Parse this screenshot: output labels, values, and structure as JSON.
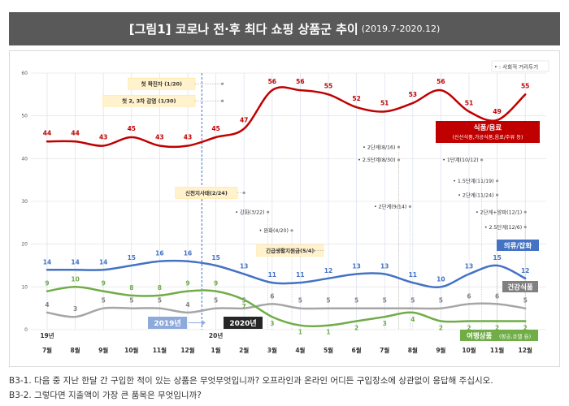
{
  "header": {
    "title": "[그림1] 코로나 전·후 최다 쇼핑 상품군 추이",
    "period": "(2019.7-2020.12)"
  },
  "chart_data": {
    "type": "line",
    "categories": [
      "7월",
      "8월",
      "9월",
      "10월",
      "11월",
      "12월",
      "1월",
      "2월",
      "3월",
      "4월",
      "5월",
      "6월",
      "7월",
      "8월",
      "9월",
      "10월",
      "11월",
      "12월"
    ],
    "year_markers": [
      {
        "label": "19년",
        "index": 0
      },
      {
        "label": "20년",
        "index": 6
      }
    ],
    "year_boxes": [
      {
        "label": "2019년",
        "color": "#8eaadb"
      },
      {
        "label": "2020년",
        "color": "#262626"
      }
    ],
    "ylim": [
      0,
      60
    ],
    "yticks": [
      0,
      10,
      20,
      30,
      40,
      50,
      60
    ],
    "series": [
      {
        "name": "식품/음료",
        "sublabel": "(신선식품,가공식품,음료/주류 등)",
        "color": "#c00000",
        "values": [
          44,
          44,
          43,
          45,
          43,
          43,
          45,
          47,
          56,
          56,
          55,
          52,
          51,
          53,
          56,
          51,
          49,
          55
        ]
      },
      {
        "name": "의류/잡화",
        "color": "#4472c4",
        "values": [
          14,
          14,
          14,
          15,
          16,
          16,
          15,
          13,
          11,
          11,
          12,
          13,
          13,
          11,
          10,
          13,
          15,
          12
        ]
      },
      {
        "name": "건강식품",
        "color": "#a6a6a6",
        "values": [
          4,
          3,
          5,
          5,
          5,
          4,
          5,
          5,
          6,
          5,
          5,
          5,
          5,
          5,
          5,
          6,
          6,
          5
        ]
      },
      {
        "name": "여행상품",
        "sublabel": "(항공,호텔 등)",
        "color": "#70ad47",
        "values": [
          9,
          10,
          9,
          8,
          8,
          9,
          9,
          7,
          3,
          1,
          1,
          2,
          3,
          4,
          2,
          2,
          2,
          2
        ]
      }
    ],
    "legend_note": "• : 사회적 거리두기",
    "events_box": [
      {
        "label": "첫 확진자 (1/20)",
        "y": 57.5
      },
      {
        "label": "첫 2, 3차 감염 (1/30)",
        "y": 53.5
      },
      {
        "label": "신천지사태(2/24)",
        "y": 32
      },
      {
        "label": "긴급생활지원금(5/4)",
        "y": 18.5
      }
    ],
    "events_text": [
      {
        "label": "강화(3/22)",
        "x": 7.85,
        "y": 27.5
      },
      {
        "label": "완화(4/20)",
        "x": 8.7,
        "y": 23.2
      },
      {
        "label": "2단계(8/16)",
        "x": 12.5,
        "y": 42.7
      },
      {
        "label": "2.5단계(8/30)",
        "x": 12.5,
        "y": 39.7
      },
      {
        "label": "2단계(9/14)",
        "x": 12.9,
        "y": 28.8
      },
      {
        "label": "1단계(10/12)",
        "x": 15.45,
        "y": 39.7
      },
      {
        "label": "1.5단계(11/19)",
        "x": 16.0,
        "y": 34.8
      },
      {
        "label": "2단계(11/24)",
        "x": 16.0,
        "y": 31.5
      },
      {
        "label": "2단계+알파(12/1)",
        "x": 17.0,
        "y": 27.5
      },
      {
        "label": "2.5단계(12/6)",
        "x": 17.0,
        "y": 24.0
      }
    ]
  },
  "footnotes": [
    "B3-1. 다음 중 지난 한달 간 구입한 적이 있는 상품은 무엇무엇입니까? 오프라인과 온라인 어디든 구입장소에 상관없이 응답해 주십시오.",
    "B3-2. 그렇다면 지출액이 가장 큰 품목은 무엇입니까?"
  ]
}
